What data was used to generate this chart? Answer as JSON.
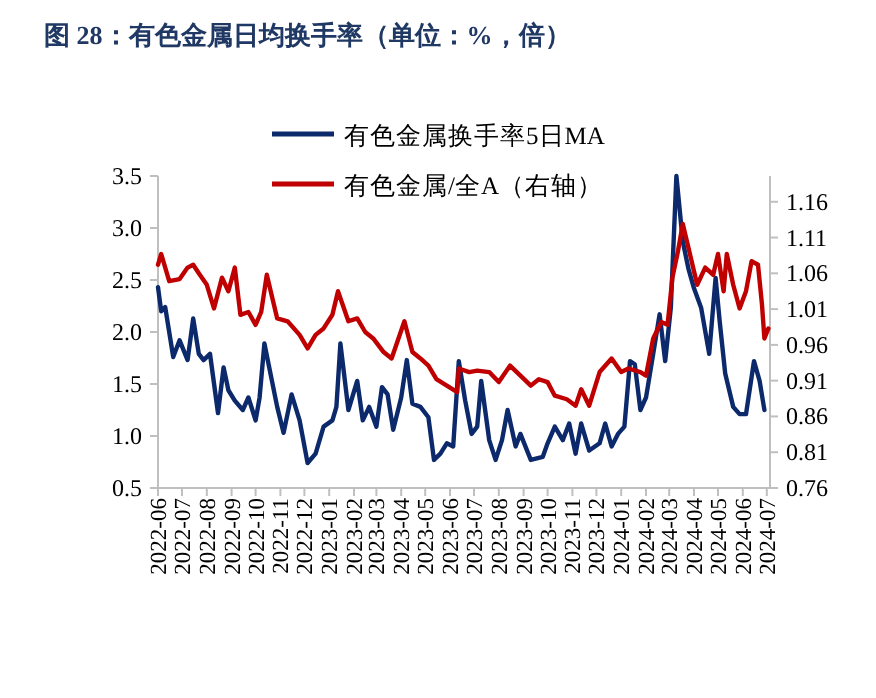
{
  "chart_data": {
    "type": "line",
    "title": "图 28：有色金属日均换手率（单位：%，倍）",
    "legend": "top",
    "xlim": [
      "2022-06-01",
      "2024-07-05"
    ],
    "xticks": [
      "2022-06",
      "2022-07",
      "2022-08",
      "2022-09",
      "2022-10",
      "2022-11",
      "2022-12",
      "2023-01",
      "2023-02",
      "2023-03",
      "2023-04",
      "2023-05",
      "2023-06",
      "2023-07",
      "2023-08",
      "2023-09",
      "2023-10",
      "2023-11",
      "2023-12",
      "2024-01",
      "2024-02",
      "2024-03",
      "2024-04",
      "2024-05",
      "2024-06",
      "2024-07"
    ],
    "ylim": [
      0.5,
      3.5
    ],
    "yticks": [
      0.5,
      {
        "value": 1,
        "label": "1.0"
      },
      1.5,
      {
        "value": 2,
        "label": "2.0"
      },
      2.5,
      {
        "value": 3,
        "label": "3.0"
      },
      3.5
    ],
    "y2lim": [
      0.76,
      1.196
    ],
    "y2ticks": [
      0.76,
      0.81,
      0.86,
      0.91,
      0.96,
      1.01,
      1.06,
      1.11,
      1.16
    ],
    "series": [
      {
        "name": "有色金属换手率5日MA",
        "color": "#0c2a6b",
        "x": [
          "2022-06-01",
          "2022-06-05",
          "2022-06-10",
          "2022-06-20",
          "2022-06-28",
          "2022-07-08",
          "2022-07-15",
          "2022-07-22",
          "2022-07-28",
          "2022-08-05",
          "2022-08-15",
          "2022-08-22",
          "2022-08-28",
          "2022-09-05",
          "2022-09-15",
          "2022-09-22",
          "2022-10-01",
          "2022-10-06",
          "2022-10-12",
          "2022-10-28",
          "2022-11-05",
          "2022-11-15",
          "2022-11-25",
          "2022-12-05",
          "2022-12-15",
          "2022-12-25",
          "2023-01-05",
          "2023-01-10",
          "2023-01-15",
          "2023-01-25",
          "2023-02-05",
          "2023-02-12",
          "2023-02-20",
          "2023-03-01",
          "2023-03-08",
          "2023-03-15",
          "2023-03-22",
          "2023-04-01",
          "2023-04-08",
          "2023-04-15",
          "2023-04-25",
          "2023-05-05",
          "2023-05-12",
          "2023-05-20",
          "2023-05-28",
          "2023-06-05",
          "2023-06-12",
          "2023-06-20",
          "2023-06-28",
          "2023-07-05",
          "2023-07-10",
          "2023-07-20",
          "2023-07-28",
          "2023-08-05",
          "2023-08-12",
          "2023-08-22",
          "2023-08-28",
          "2023-09-10",
          "2023-09-25",
          "2023-10-01",
          "2023-10-10",
          "2023-10-20",
          "2023-10-28",
          "2023-11-05",
          "2023-11-12",
          "2023-11-22",
          "2023-12-05",
          "2023-12-12",
          "2023-12-20",
          "2023-12-28",
          "2024-01-05",
          "2024-01-12",
          "2024-01-18",
          "2024-01-25",
          "2024-02-01",
          "2024-02-10",
          "2024-02-18",
          "2024-02-25",
          "2024-03-03",
          "2024-03-10",
          "2024-03-18",
          "2024-03-25",
          "2024-04-01",
          "2024-04-10",
          "2024-04-20",
          "2024-04-28",
          "2024-05-03",
          "2024-05-10",
          "2024-05-20",
          "2024-05-28",
          "2024-06-05",
          "2024-06-15",
          "2024-06-22",
          "2024-06-28"
        ],
        "values": [
          2.43,
          2.2,
          2.24,
          1.76,
          1.92,
          1.73,
          2.13,
          1.79,
          1.73,
          1.79,
          1.22,
          1.66,
          1.44,
          1.34,
          1.25,
          1.37,
          1.15,
          1.37,
          1.89,
          1.28,
          1.03,
          1.4,
          1.15,
          0.74,
          0.83,
          1.09,
          1.15,
          1.28,
          1.89,
          1.25,
          1.53,
          1.15,
          1.28,
          1.09,
          1.47,
          1.4,
          1.06,
          1.37,
          1.73,
          1.31,
          1.28,
          1.18,
          0.77,
          0.83,
          0.93,
          0.9,
          1.72,
          1.34,
          1.02,
          1.09,
          1.53,
          0.96,
          0.77,
          0.96,
          1.25,
          0.9,
          1.02,
          0.77,
          0.8,
          0.93,
          1.09,
          0.96,
          1.12,
          0.83,
          1.12,
          0.86,
          0.93,
          1.12,
          0.9,
          1.02,
          1.09,
          1.72,
          1.69,
          1.25,
          1.37,
          1.79,
          2.17,
          1.72,
          2.23,
          3.5,
          2.87,
          2.61,
          2.42,
          2.23,
          1.79,
          2.52,
          2.11,
          1.6,
          1.28,
          1.21,
          1.21,
          1.72,
          1.53,
          1.25
        ]
      },
      {
        "name": "有色金属/全A（右轴）",
        "color": "#c00000",
        "axis": "y2",
        "x": [
          "2022-06-01",
          "2022-06-05",
          "2022-06-15",
          "2022-06-28",
          "2022-07-08",
          "2022-07-15",
          "2022-07-22",
          "2022-08-01",
          "2022-08-10",
          "2022-08-20",
          "2022-08-28",
          "2022-09-05",
          "2022-09-12",
          "2022-09-22",
          "2022-10-01",
          "2022-10-08",
          "2022-10-15",
          "2022-10-28",
          "2022-11-10",
          "2022-11-25",
          "2022-12-05",
          "2022-12-15",
          "2022-12-25",
          "2023-01-05",
          "2023-01-12",
          "2023-01-25",
          "2023-02-05",
          "2023-02-15",
          "2023-02-25",
          "2023-03-10",
          "2023-03-20",
          "2023-04-05",
          "2023-04-15",
          "2023-04-25",
          "2023-05-05",
          "2023-05-15",
          "2023-05-28",
          "2023-06-10",
          "2023-06-12",
          "2023-06-25",
          "2023-07-05",
          "2023-07-20",
          "2023-08-01",
          "2023-08-15",
          "2023-08-28",
          "2023-09-10",
          "2023-09-20",
          "2023-10-01",
          "2023-10-10",
          "2023-10-25",
          "2023-11-05",
          "2023-11-12",
          "2023-11-22",
          "2023-12-05",
          "2023-12-20",
          "2024-01-01",
          "2024-01-10",
          "2024-01-25",
          "2024-02-01",
          "2024-02-10",
          "2024-02-20",
          "2024-02-28",
          "2024-03-05",
          "2024-03-12",
          "2024-03-18",
          "2024-03-25",
          "2024-04-05",
          "2024-04-15",
          "2024-04-25",
          "2024-05-01",
          "2024-05-08",
          "2024-05-12",
          "2024-05-20",
          "2024-05-28",
          "2024-06-05",
          "2024-06-12",
          "2024-06-20",
          "2024-06-25",
          "2024-06-28",
          "2024-07-03"
        ],
        "values": [
          1.072,
          1.087,
          1.049,
          1.052,
          1.068,
          1.072,
          1.06,
          1.044,
          1.011,
          1.054,
          1.035,
          1.068,
          1.002,
          1.006,
          0.988,
          1.006,
          1.058,
          0.997,
          0.993,
          0.974,
          0.955,
          0.974,
          0.983,
          1.002,
          1.035,
          0.993,
          0.997,
          0.978,
          0.969,
          0.95,
          0.941,
          0.993,
          0.95,
          0.941,
          0.931,
          0.912,
          0.903,
          0.894,
          0.927,
          0.922,
          0.924,
          0.922,
          0.908,
          0.931,
          0.917,
          0.903,
          0.912,
          0.908,
          0.889,
          0.884,
          0.875,
          0.898,
          0.875,
          0.922,
          0.941,
          0.922,
          0.927,
          0.922,
          0.917,
          0.969,
          0.992,
          0.988,
          1.054,
          1.091,
          1.129,
          1.096,
          1.044,
          1.068,
          1.058,
          1.087,
          1.035,
          1.087,
          1.044,
          1.011,
          1.035,
          1.077,
          1.072,
          1.016,
          0.969,
          0.983
        ]
      }
    ]
  }
}
